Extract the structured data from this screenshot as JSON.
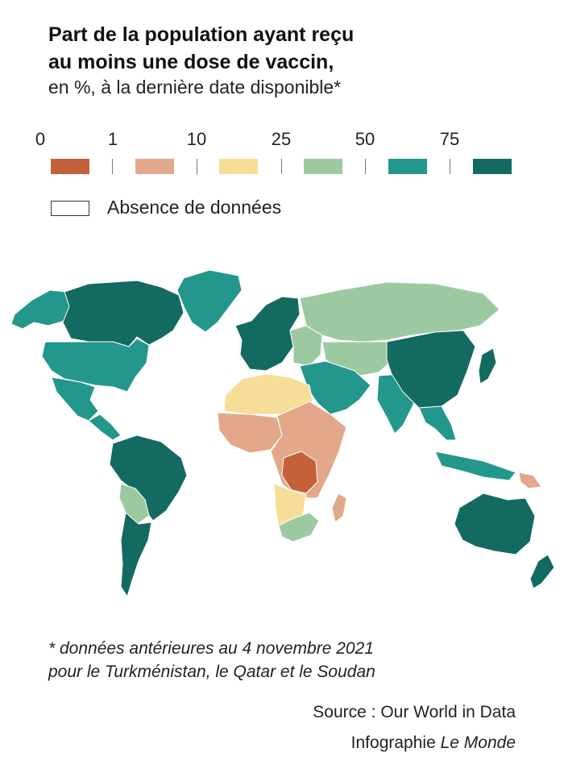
{
  "title_line1": "Part de la population ayant reçu",
  "title_line2": "au moins une dose de vaccin,",
  "subtitle": "en %, à la dernière date disponible*",
  "legend": {
    "ticks": [
      "0",
      "1",
      "10",
      "25",
      "50",
      "75"
    ],
    "colors": [
      "#c4603a",
      "#e2a889",
      "#f6dd98",
      "#9dc9a0",
      "#23978b",
      "#136a61"
    ],
    "no_data_label": "Absence de données"
  },
  "palette": {
    "cat1": "#c4603a",
    "cat2": "#e2a889",
    "cat3": "#f6dd98",
    "cat4": "#9dc9a0",
    "cat5": "#23978b",
    "cat6": "#136a61"
  },
  "regions": [
    {
      "name": "greenland",
      "category": 5
    },
    {
      "name": "alaska",
      "category": 5
    },
    {
      "name": "canada",
      "category": 6
    },
    {
      "name": "united-states",
      "category": 5
    },
    {
      "name": "mexico",
      "category": 5
    },
    {
      "name": "central-america",
      "category": 5
    },
    {
      "name": "south-america-north",
      "category": 6
    },
    {
      "name": "bolivia-paraguay",
      "category": 4
    },
    {
      "name": "southern-cone",
      "category": 6
    },
    {
      "name": "western-europe",
      "category": 6
    },
    {
      "name": "eastern-europe",
      "category": 4
    },
    {
      "name": "russia",
      "category": 4
    },
    {
      "name": "central-asia",
      "category": 4
    },
    {
      "name": "middle-east",
      "category": 5
    },
    {
      "name": "north-africa",
      "category": 3
    },
    {
      "name": "west-africa",
      "category": 2
    },
    {
      "name": "central-east-africa",
      "category": 2
    },
    {
      "name": "dr-congo",
      "category": 1
    },
    {
      "name": "southern-africa",
      "category": 3
    },
    {
      "name": "south-africa",
      "category": 4
    },
    {
      "name": "madagascar",
      "category": 2
    },
    {
      "name": "india",
      "category": 5
    },
    {
      "name": "china",
      "category": 6
    },
    {
      "name": "japan",
      "category": 6
    },
    {
      "name": "southeast-asia",
      "category": 5
    },
    {
      "name": "indonesia",
      "category": 5
    },
    {
      "name": "papua-new-guinea",
      "category": 2
    },
    {
      "name": "australia",
      "category": 6
    },
    {
      "name": "new-zealand",
      "category": 6
    }
  ],
  "note_line1": "* données antérieures au 4 novembre 2021",
  "note_line2": "pour le Turkménistan, le Qatar et le Soudan",
  "source": "Source : Our World in Data",
  "credit_prefix": "Infographie ",
  "credit_brand": "Le Monde"
}
